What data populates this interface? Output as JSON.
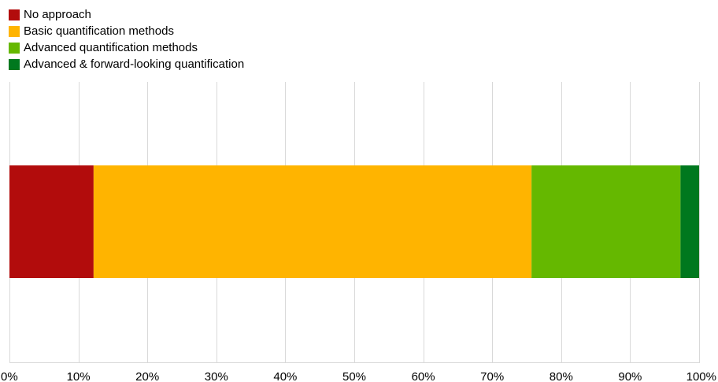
{
  "chart_data": {
    "type": "bar",
    "orientation": "horizontal",
    "stacked": true,
    "categories": [
      ""
    ],
    "series": [
      {
        "name": "No approach",
        "values": [
          12.2
        ],
        "color": "#b20c0c"
      },
      {
        "name": "Basic quantification methods",
        "values": [
          63.5
        ],
        "color": "#ffb400"
      },
      {
        "name": "Advanced quantification methods",
        "values": [
          21.6
        ],
        "color": "#65b800"
      },
      {
        "name": "Advanced & forward-looking quantification",
        "values": [
          2.7
        ],
        "color": "#00781e"
      }
    ],
    "x_ticks": [
      "0%",
      "10%",
      "20%",
      "30%",
      "40%",
      "50%",
      "60%",
      "70%",
      "80%",
      "90%",
      "100%"
    ],
    "xlim": [
      0,
      100
    ],
    "grid": true,
    "legend_position": "top-left",
    "title": "",
    "xlabel": "",
    "ylabel": ""
  }
}
